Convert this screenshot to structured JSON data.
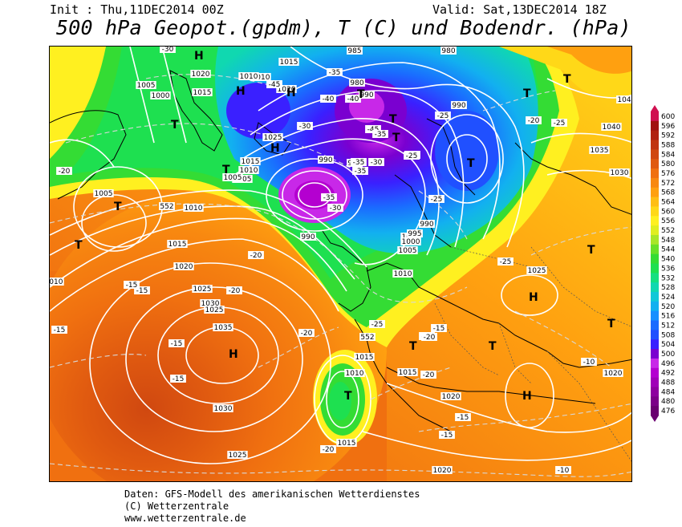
{
  "header": {
    "init": "Init : Thu,11DEC2014 00Z",
    "valid": "Valid: Sat,13DEC2014 18Z",
    "title": "500 hPa Geopot.(gpdm), T (C) und Bodendr. (hPa)"
  },
  "footer": {
    "line1": "Daten: GFS-Modell des amerikanischen Wetterdienstes",
    "line2": "(C) Wetterzentrale",
    "line3": "www.wetterzentrale.de"
  },
  "colors": {
    "c476": "#6a0070",
    "c480": "#7c0088",
    "c484": "#8e00a0",
    "c488": "#a000b8",
    "c492": "#b400d0",
    "c496": "#c828e8",
    "c500": "#7a00d0",
    "c504": "#3a20ff",
    "c508": "#2050ff",
    "c512": "#1a6cff",
    "c516": "#1890ff",
    "c520": "#12b0f0",
    "c524": "#10c8d8",
    "c528": "#10d8b0",
    "c532": "#14e080",
    "c536": "#1ee050",
    "c540": "#34dc34",
    "c544": "#68e028",
    "c548": "#a8e628",
    "c552": "#e0ee20",
    "c556": "#fff020",
    "c560": "#ffd818",
    "c564": "#ffbe14",
    "c568": "#ffa010",
    "c572": "#f88810",
    "c576": "#f07010",
    "c580": "#e05a10",
    "c584": "#d04810",
    "c588": "#c03410",
    "c592": "#b02010",
    "c596": "#a01010",
    "c600": "#d01050"
  },
  "colorbar": {
    "ticks": [
      "600",
      "596",
      "592",
      "588",
      "584",
      "580",
      "576",
      "572",
      "568",
      "564",
      "560",
      "556",
      "552",
      "548",
      "544",
      "540",
      "536",
      "532",
      "528",
      "524",
      "520",
      "516",
      "512",
      "508",
      "504",
      "500",
      "496",
      "492",
      "488",
      "484",
      "480",
      "476"
    ],
    "colors": [
      "#d01050",
      "#a01010",
      "#b02010",
      "#c03410",
      "#d04810",
      "#e05a10",
      "#f07010",
      "#f88810",
      "#ffa010",
      "#ffbe14",
      "#ffd818",
      "#fff020",
      "#e0ee20",
      "#a8e628",
      "#68e028",
      "#34dc34",
      "#1ee050",
      "#14e080",
      "#10d8b0",
      "#10c8d8",
      "#12b0f0",
      "#1890ff",
      "#1a6cff",
      "#2050ff",
      "#3a20ff",
      "#7a00d0",
      "#c828e8",
      "#b400d0",
      "#a000b8",
      "#8e00a0",
      "#7c0088",
      "#6a0070"
    ]
  },
  "map": {
    "pressure_labels": [
      "1015",
      "985",
      "1010",
      "1020",
      "980",
      "990",
      "1005",
      "1000",
      "1015",
      "1020",
      "1010",
      "980",
      "990",
      "1025",
      "1015",
      "1010",
      "1005",
      "985",
      "990",
      "985",
      "1005",
      "1010",
      "552",
      "1005",
      "990",
      "990",
      "1015",
      "995",
      "1000",
      "1005",
      "1010",
      "1020",
      "1010",
      "1015",
      "1025",
      "1025",
      "1030",
      "1035",
      "552",
      "1010",
      "1015",
      "1015",
      "1020",
      "1025",
      "1030",
      "1015",
      "1025",
      "1020",
      "1020",
      "1040",
      "1035",
      "1030",
      "104"
    ],
    "temperature_labels": [
      "-30",
      "-35",
      "-45",
      "-40",
      "-40",
      "-45",
      "-30",
      "-35",
      "-35",
      "-25",
      "-25",
      "-20",
      "-35",
      "-30",
      "-25",
      "-20",
      "-35",
      "-30",
      "-25",
      "-15",
      "-20",
      "-25",
      "-20",
      "-15",
      "-15",
      "-15",
      "-20",
      "-25",
      "-20",
      "-20",
      "-15",
      "-10",
      "-15",
      "-20",
      "-20",
      "-15",
      "-15",
      "-10"
    ],
    "high_symbol": "H",
    "low_symbol": "T",
    "highs": [
      "H",
      "H",
      "H",
      "H",
      "H",
      "H",
      "H"
    ],
    "lows": [
      "T",
      "T",
      "T",
      "T",
      "T",
      "T",
      "T",
      "T",
      "T",
      "T",
      "T",
      "T",
      "T",
      "T",
      "T"
    ]
  }
}
